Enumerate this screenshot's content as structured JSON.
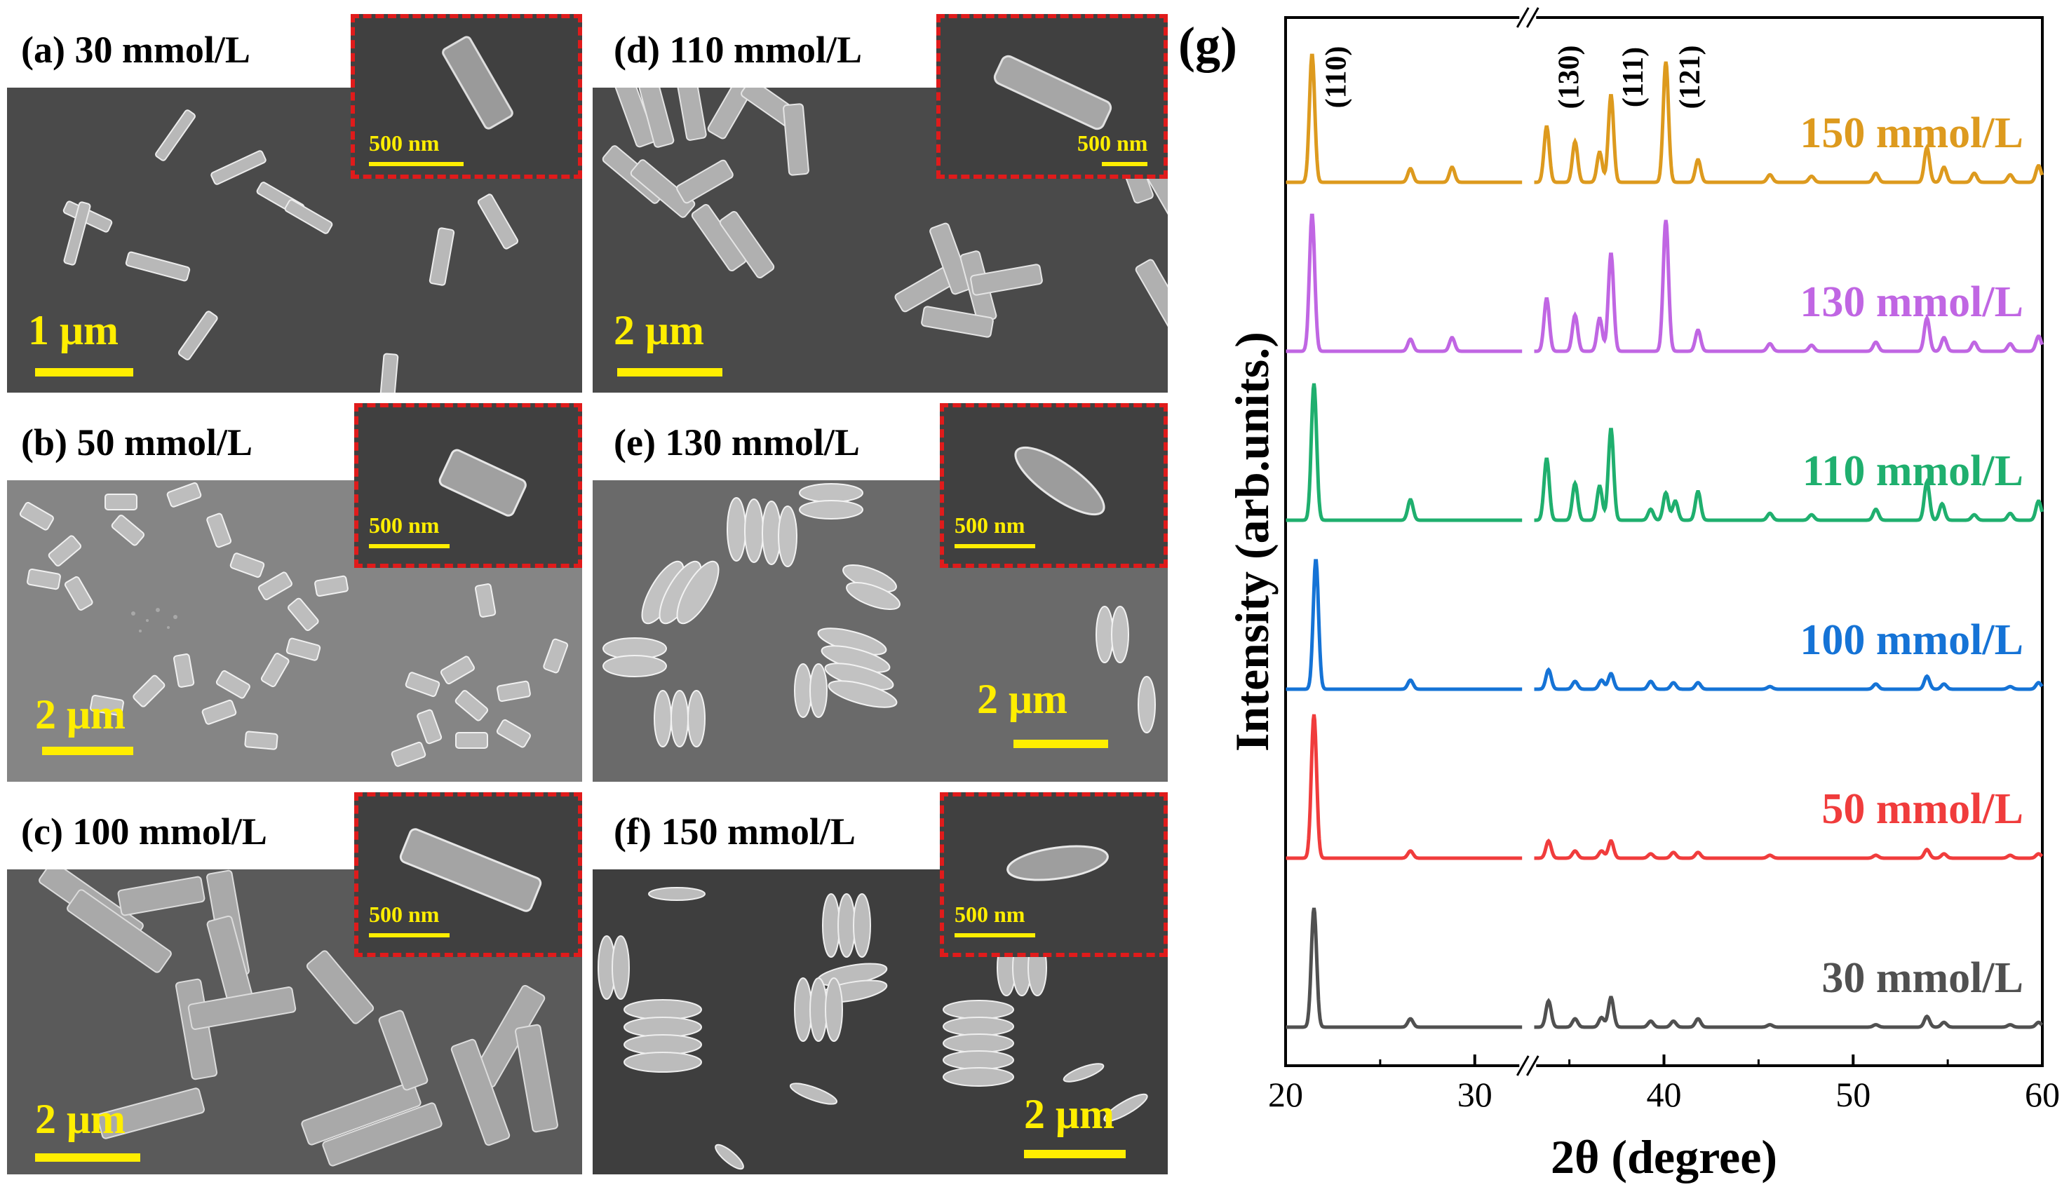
{
  "panels": {
    "a": {
      "label": "(a) 30 mmol/L",
      "scale": "1 μm",
      "inset_scale": "500 nm"
    },
    "b": {
      "label": "(b) 50 mmol/L",
      "scale": "2 μm",
      "inset_scale": "500 nm"
    },
    "c": {
      "label": "(c) 100 mmol/L",
      "scale": "2 μm",
      "inset_scale": "500 nm"
    },
    "d": {
      "label": "(d) 110 mmol/L",
      "scale": "2 μm",
      "inset_scale": "500 nm"
    },
    "e": {
      "label": "(e) 130 mmol/L",
      "scale": "2 μm",
      "inset_scale": "500 nm"
    },
    "f": {
      "label": "(f) 150 mmol/L",
      "scale": "2 μm",
      "inset_scale": "500 nm"
    }
  },
  "chart_data": {
    "type": "line",
    "panel_label": "(g)",
    "xlabel": "2θ (degree)",
    "ylabel": "Intensity (arb.units.)",
    "xlim": [
      20,
      60
    ],
    "axis_break_at": 32.8,
    "xticks": [
      20,
      30,
      40,
      50,
      60
    ],
    "xtick_labels": [
      "20",
      "30",
      "40",
      "50",
      "60"
    ],
    "peak_labels": [
      {
        "text": "(110)",
        "x": 21.5
      },
      {
        "text": "(130)",
        "x": 33.8
      },
      {
        "text": "(111)",
        "x": 37.2
      },
      {
        "text": "(121)",
        "x": 40.2
      }
    ],
    "series": [
      {
        "name": "30 mmol/L",
        "color": "#505050",
        "peaks": [
          [
            21.5,
            1.0
          ],
          [
            26.6,
            0.07
          ],
          [
            33.9,
            0.22
          ],
          [
            35.3,
            0.07
          ],
          [
            36.7,
            0.08
          ],
          [
            37.2,
            0.25
          ],
          [
            39.3,
            0.05
          ],
          [
            40.5,
            0.05
          ],
          [
            41.8,
            0.07
          ],
          [
            45.6,
            0.02
          ],
          [
            51.2,
            0.02
          ],
          [
            53.9,
            0.09
          ],
          [
            54.8,
            0.04
          ],
          [
            58.3,
            0.02
          ],
          [
            59.8,
            0.04
          ]
        ]
      },
      {
        "name": "50 mmol/L",
        "color": "#f03c3c",
        "peaks": [
          [
            21.5,
            1.0
          ],
          [
            26.6,
            0.05
          ],
          [
            33.9,
            0.12
          ],
          [
            35.3,
            0.05
          ],
          [
            36.7,
            0.05
          ],
          [
            37.2,
            0.12
          ],
          [
            39.3,
            0.03
          ],
          [
            40.5,
            0.04
          ],
          [
            41.8,
            0.04
          ],
          [
            45.6,
            0.02
          ],
          [
            51.2,
            0.02
          ],
          [
            53.9,
            0.06
          ],
          [
            54.8,
            0.03
          ],
          [
            58.3,
            0.02
          ],
          [
            59.8,
            0.03
          ]
        ]
      },
      {
        "name": "100 mmol/L",
        "color": "#1573d6",
        "peaks": [
          [
            21.6,
            1.0
          ],
          [
            26.6,
            0.07
          ],
          [
            33.9,
            0.15
          ],
          [
            35.3,
            0.06
          ],
          [
            36.7,
            0.07
          ],
          [
            37.2,
            0.12
          ],
          [
            39.3,
            0.06
          ],
          [
            40.5,
            0.05
          ],
          [
            41.8,
            0.05
          ],
          [
            45.6,
            0.02
          ],
          [
            51.2,
            0.04
          ],
          [
            53.9,
            0.1
          ],
          [
            54.8,
            0.04
          ],
          [
            58.3,
            0.02
          ],
          [
            59.8,
            0.05
          ]
        ]
      },
      {
        "name": "110 mmol/L",
        "color": "#1faf6e",
        "peaks": [
          [
            21.5,
            1.0
          ],
          [
            26.6,
            0.15
          ],
          [
            33.8,
            0.45
          ],
          [
            35.3,
            0.27
          ],
          [
            36.6,
            0.25
          ],
          [
            37.2,
            0.67
          ],
          [
            39.3,
            0.08
          ],
          [
            40.1,
            0.2
          ],
          [
            40.6,
            0.14
          ],
          [
            41.8,
            0.21
          ],
          [
            45.6,
            0.05
          ],
          [
            47.8,
            0.04
          ],
          [
            51.2,
            0.08
          ],
          [
            53.9,
            0.28
          ],
          [
            54.7,
            0.12
          ],
          [
            56.4,
            0.04
          ],
          [
            58.3,
            0.05
          ],
          [
            59.8,
            0.14
          ]
        ]
      },
      {
        "name": "130 mmol/L",
        "color": "#c066e3",
        "peaks": [
          [
            21.4,
            0.91
          ],
          [
            26.6,
            0.08
          ],
          [
            28.8,
            0.09
          ],
          [
            33.8,
            0.35
          ],
          [
            35.3,
            0.24
          ],
          [
            36.6,
            0.22
          ],
          [
            37.2,
            0.65
          ],
          [
            40.1,
            0.87
          ],
          [
            41.8,
            0.14
          ],
          [
            45.6,
            0.05
          ],
          [
            47.8,
            0.04
          ],
          [
            51.2,
            0.06
          ],
          [
            53.9,
            0.22
          ],
          [
            54.8,
            0.09
          ],
          [
            56.4,
            0.06
          ],
          [
            58.3,
            0.05
          ],
          [
            59.8,
            0.1
          ]
        ]
      },
      {
        "name": "150 mmol/L",
        "color": "#dd9a1e",
        "peaks": [
          [
            21.4,
            0.85
          ],
          [
            26.6,
            0.09
          ],
          [
            28.8,
            0.1
          ],
          [
            33.8,
            0.37
          ],
          [
            35.3,
            0.27
          ],
          [
            36.6,
            0.2
          ],
          [
            37.2,
            0.58
          ],
          [
            40.1,
            0.8
          ],
          [
            41.8,
            0.15
          ],
          [
            45.6,
            0.05
          ],
          [
            47.8,
            0.04
          ],
          [
            51.2,
            0.06
          ],
          [
            53.9,
            0.23
          ],
          [
            54.8,
            0.1
          ],
          [
            56.4,
            0.06
          ],
          [
            58.3,
            0.05
          ],
          [
            59.8,
            0.11
          ]
        ]
      }
    ]
  }
}
